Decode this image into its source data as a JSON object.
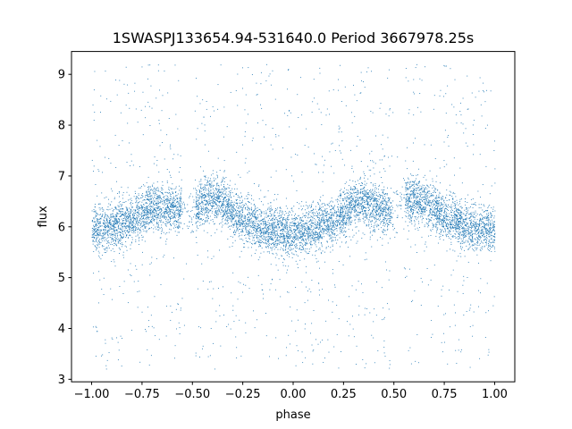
{
  "chart_data": {
    "type": "scatter",
    "title": "1SWASPJ133654.94-531640.0 Period 3667978.25s",
    "xlabel": "phase",
    "ylabel": "flux",
    "xlim": [
      -1.1,
      1.1
    ],
    "ylim": [
      2.95,
      9.45
    ],
    "x_ticks": [
      -1.0,
      -0.75,
      -0.5,
      -0.25,
      0.0,
      0.25,
      0.5,
      0.75,
      1.0
    ],
    "x_tick_labels": [
      "−1.00",
      "−0.75",
      "−0.50",
      "−0.25",
      "0.00",
      "0.25",
      "0.50",
      "0.75",
      "1.00"
    ],
    "y_ticks": [
      3,
      4,
      5,
      6,
      7,
      8,
      9
    ],
    "y_tick_labels": [
      "3",
      "4",
      "5",
      "6",
      "7",
      "8",
      "9"
    ],
    "grid": false,
    "marker_color": "#1f77b4",
    "series": [
      {
        "x_range": [
          -1.0,
          1.0
        ],
        "y_range": [
          3.2,
          9.2
        ],
        "approx_points": 9000,
        "trend": {
          "phase": [
            -1.0,
            -0.9,
            -0.8,
            -0.7,
            -0.6,
            -0.5,
            -0.45,
            -0.35,
            -0.25,
            -0.15,
            -0.05,
            0.0,
            0.1,
            0.2,
            0.3,
            0.4,
            0.5,
            0.55,
            0.65,
            0.75,
            0.85,
            0.95,
            1.0
          ],
          "flux": [
            5.95,
            6.0,
            6.15,
            6.4,
            6.35,
            6.3,
            6.55,
            6.5,
            6.1,
            6.0,
            5.9,
            5.85,
            6.0,
            6.1,
            6.5,
            6.4,
            6.3,
            6.55,
            6.5,
            6.2,
            6.0,
            5.95,
            5.9
          ]
        }
      }
    ]
  }
}
